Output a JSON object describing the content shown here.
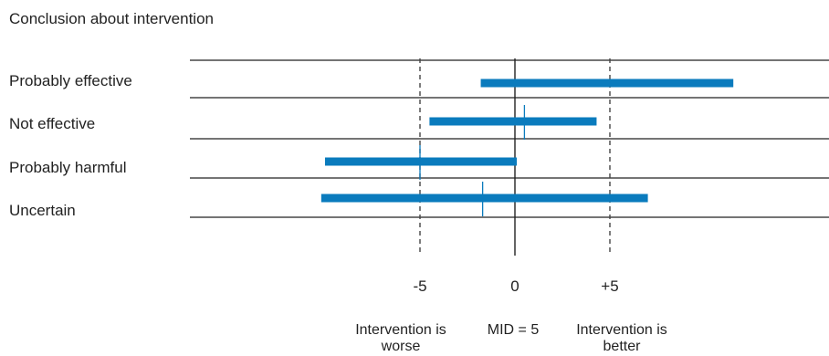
{
  "title": "Conclusion about intervention",
  "colors": {
    "bar": "#0a7bbd",
    "line": "#222222",
    "dashed": "#444444"
  },
  "chart_data": {
    "type": "forest",
    "rows": [
      {
        "label": "Probably effective",
        "low": -1.8,
        "high": 11.5,
        "point": null
      },
      {
        "label": "Not effective",
        "low": -4.5,
        "high": 4.3,
        "point": 0.5
      },
      {
        "label": "Probably harmful",
        "low": -10,
        "high": 0.1,
        "point": -5
      },
      {
        "label": "Uncertain",
        "low": -10.2,
        "high": 7.0,
        "point": -1.7
      }
    ],
    "x_ticks": [
      {
        "value": -5,
        "label": "-5"
      },
      {
        "value": 0,
        "label": "0"
      },
      {
        "value": 5,
        "label": "+5"
      }
    ],
    "reference_lines": {
      "dashed": [
        -5,
        5
      ],
      "solid": [
        0
      ]
    },
    "annotations": {
      "worse": [
        "Intervention is",
        "worse"
      ],
      "mid": "MID = 5",
      "better": [
        "Intervention is",
        "better"
      ]
    }
  }
}
